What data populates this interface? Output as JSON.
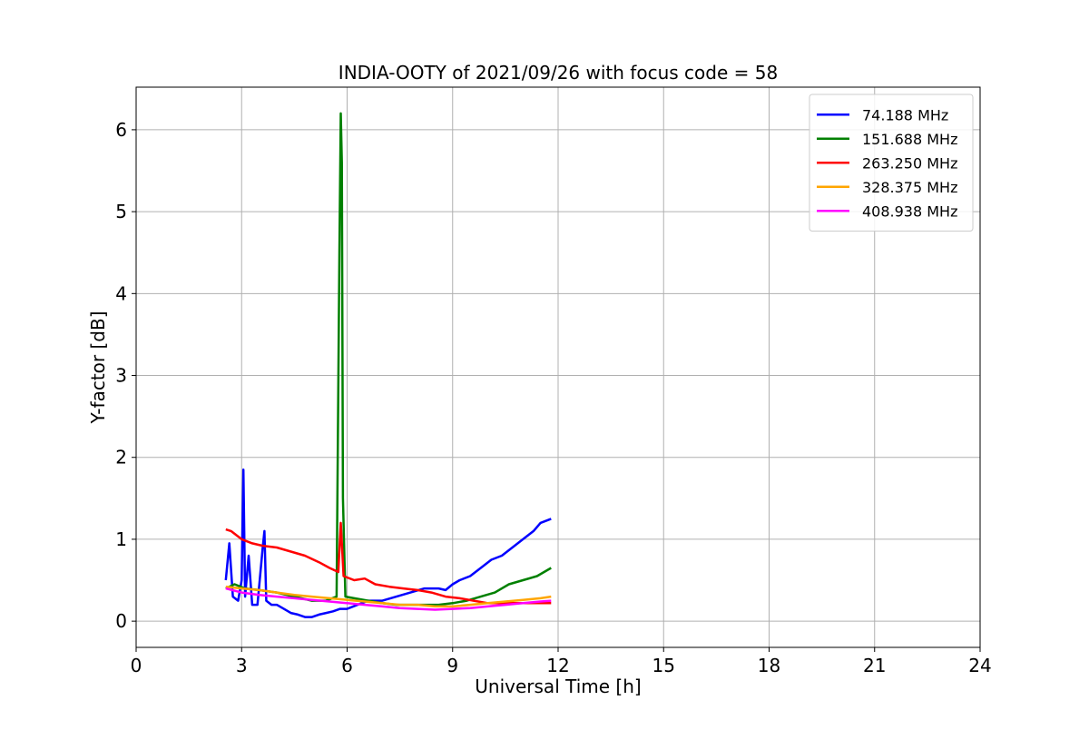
{
  "chart_data": {
    "type": "line",
    "title": "INDIA-OOTY of 2021/09/26 with focus code = 58",
    "xlabel": "Universal Time [h]",
    "ylabel": "Y-factor [dB]",
    "xlim": [
      0,
      24
    ],
    "ylim": [
      -0.32,
      6.52
    ],
    "x_ticks": [
      0,
      3,
      6,
      9,
      12,
      15,
      18,
      21,
      24
    ],
    "y_ticks": [
      0,
      1,
      2,
      3,
      4,
      5,
      6
    ],
    "grid": true,
    "legend_position": "top-right",
    "series": [
      {
        "name": " 74.188 MHz",
        "color": "#0000ff",
        "x": [
          2.55,
          2.65,
          2.75,
          2.9,
          3.0,
          3.05,
          3.1,
          3.2,
          3.3,
          3.45,
          3.6,
          3.65,
          3.7,
          3.85,
          4.0,
          4.2,
          4.4,
          4.6,
          4.8,
          5.0,
          5.2,
          5.4,
          5.6,
          5.8,
          6.0,
          6.3,
          6.6,
          7.0,
          7.4,
          7.8,
          8.2,
          8.6,
          8.8,
          9.0,
          9.2,
          9.5,
          9.8,
          10.1,
          10.4,
          10.7,
          11.0,
          11.3,
          11.5,
          11.8
        ],
        "y": [
          0.5,
          0.95,
          0.3,
          0.25,
          0.5,
          1.85,
          0.3,
          0.8,
          0.2,
          0.2,
          0.9,
          1.1,
          0.25,
          0.2,
          0.2,
          0.15,
          0.1,
          0.08,
          0.05,
          0.05,
          0.08,
          0.1,
          0.12,
          0.15,
          0.15,
          0.2,
          0.25,
          0.25,
          0.3,
          0.35,
          0.4,
          0.4,
          0.38,
          0.45,
          0.5,
          0.55,
          0.65,
          0.75,
          0.8,
          0.9,
          1.0,
          1.1,
          1.2,
          1.25
        ]
      },
      {
        "name": "151.688 MHz",
        "color": "#008000",
        "x": [
          2.55,
          2.8,
          3.1,
          3.5,
          4.0,
          4.5,
          5.0,
          5.4,
          5.7,
          5.78,
          5.82,
          5.85,
          5.88,
          5.95,
          6.2,
          6.6,
          7.0,
          7.4,
          7.8,
          8.2,
          8.6,
          9.0,
          9.4,
          9.8,
          10.2,
          10.6,
          11.0,
          11.4,
          11.8
        ],
        "y": [
          0.4,
          0.45,
          0.4,
          0.38,
          0.35,
          0.3,
          0.25,
          0.25,
          0.3,
          4.5,
          6.2,
          5.6,
          1.5,
          0.3,
          0.28,
          0.25,
          0.22,
          0.2,
          0.2,
          0.2,
          0.2,
          0.22,
          0.25,
          0.3,
          0.35,
          0.45,
          0.5,
          0.55,
          0.65
        ]
      },
      {
        "name": "263.250 MHz",
        "color": "#ff0000",
        "x": [
          2.55,
          2.7,
          3.0,
          3.3,
          3.6,
          4.0,
          4.4,
          4.8,
          5.2,
          5.5,
          5.75,
          5.82,
          5.9,
          6.2,
          6.5,
          6.8,
          7.2,
          7.6,
          8.0,
          8.4,
          8.8,
          9.2,
          9.6,
          10.0,
          10.4,
          10.8,
          11.2,
          11.5,
          11.8
        ],
        "y": [
          1.12,
          1.1,
          1.0,
          0.95,
          0.92,
          0.9,
          0.85,
          0.8,
          0.72,
          0.65,
          0.6,
          1.2,
          0.55,
          0.5,
          0.52,
          0.45,
          0.42,
          0.4,
          0.38,
          0.35,
          0.3,
          0.28,
          0.25,
          0.22,
          0.22,
          0.22,
          0.22,
          0.22,
          0.22
        ]
      },
      {
        "name": "328.375 MHz",
        "color": "#ffa500",
        "x": [
          2.55,
          3.0,
          3.5,
          4.0,
          4.5,
          5.0,
          5.5,
          6.0,
          6.5,
          7.0,
          7.5,
          8.0,
          8.5,
          9.0,
          9.5,
          10.0,
          10.5,
          11.0,
          11.5,
          11.8
        ],
        "y": [
          0.42,
          0.4,
          0.38,
          0.35,
          0.32,
          0.3,
          0.28,
          0.26,
          0.24,
          0.22,
          0.2,
          0.2,
          0.18,
          0.18,
          0.2,
          0.22,
          0.24,
          0.26,
          0.28,
          0.3
        ]
      },
      {
        "name": "408.938 MHz",
        "color": "#ff00ff",
        "x": [
          2.55,
          3.0,
          3.5,
          4.0,
          4.5,
          5.0,
          5.5,
          6.0,
          6.5,
          7.0,
          7.5,
          8.0,
          8.5,
          9.0,
          9.5,
          10.0,
          10.5,
          11.0,
          11.5,
          11.8
        ],
        "y": [
          0.4,
          0.35,
          0.32,
          0.3,
          0.28,
          0.26,
          0.24,
          0.22,
          0.2,
          0.18,
          0.16,
          0.15,
          0.14,
          0.15,
          0.16,
          0.18,
          0.2,
          0.22,
          0.24,
          0.25
        ]
      }
    ]
  }
}
